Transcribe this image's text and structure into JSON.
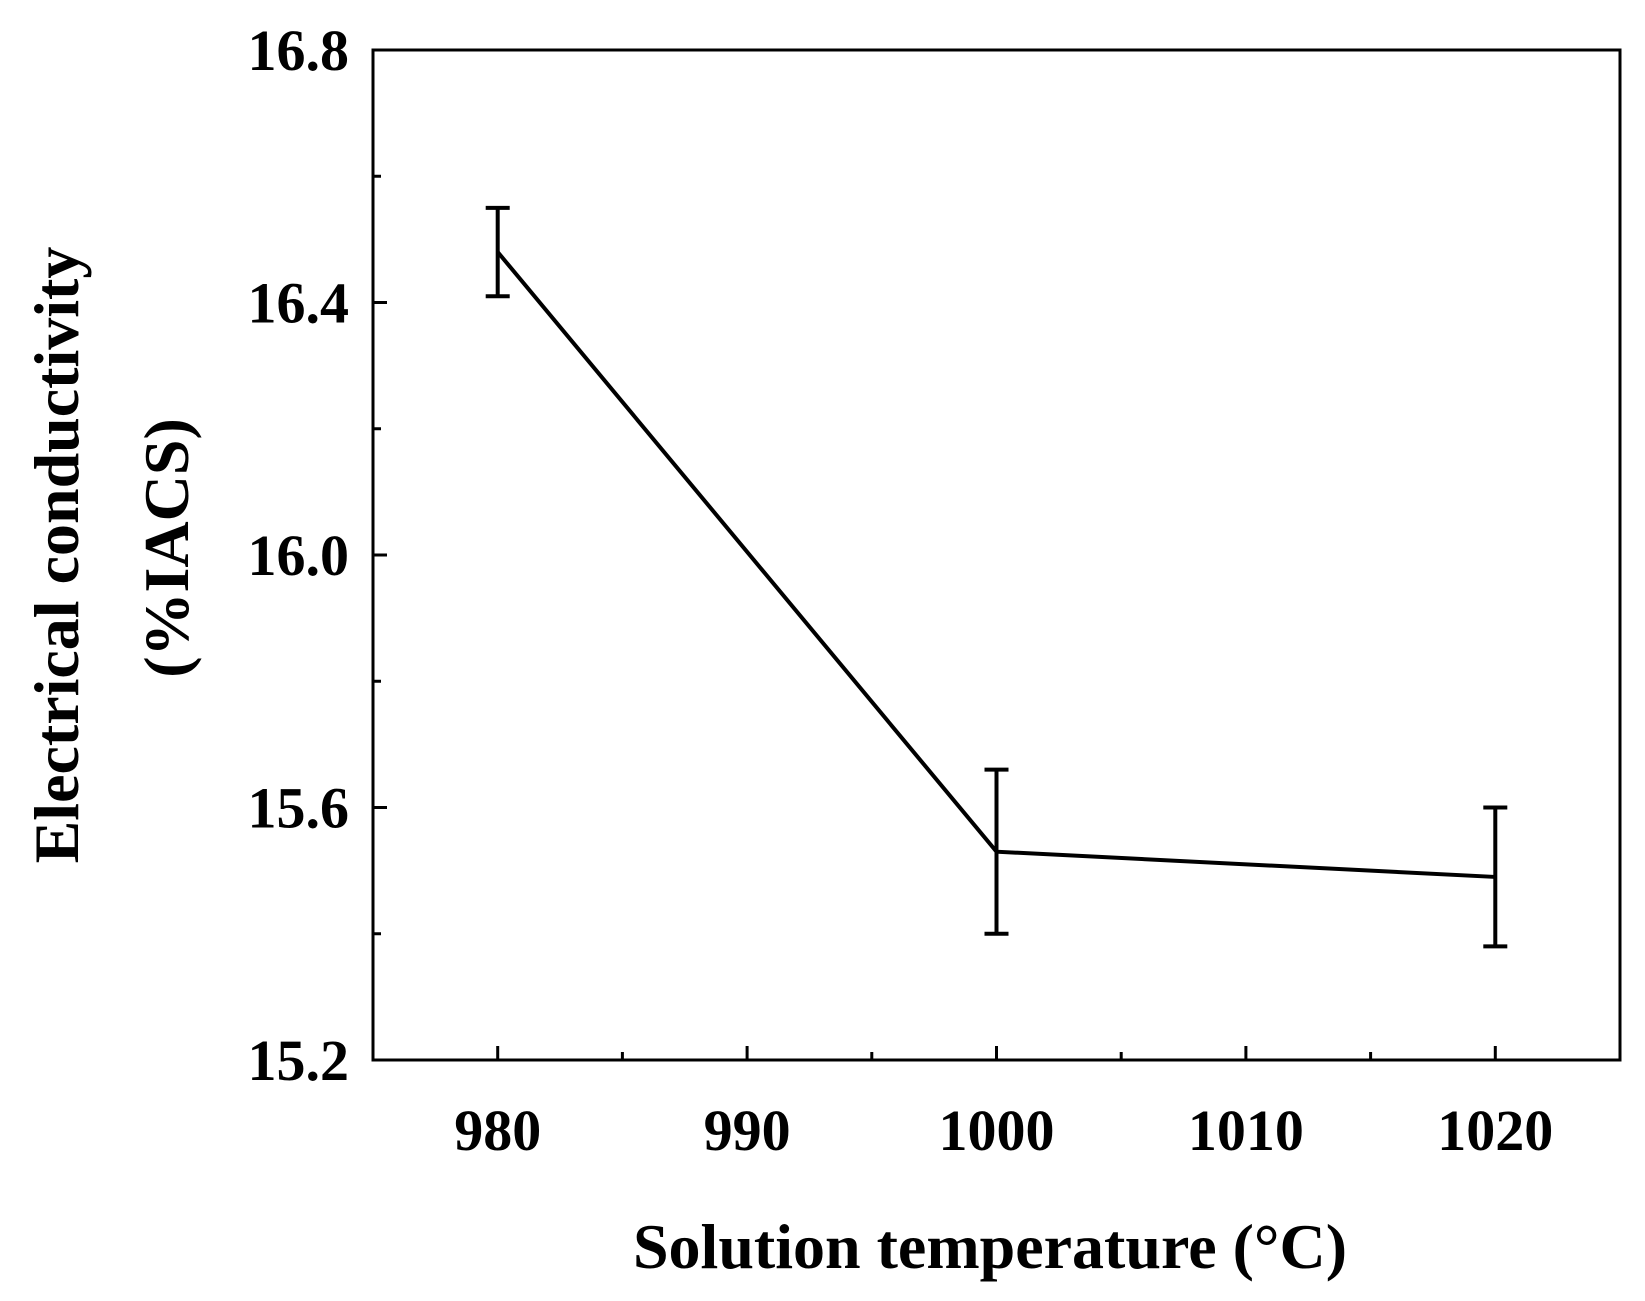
{
  "chart_data": {
    "type": "line",
    "title": "",
    "xlabel": "Solution temperature (°C)",
    "ylabel_line1": "Electrical conductivity",
    "ylabel_line2": "(%IACS)",
    "x": [
      980,
      1000,
      1020
    ],
    "series": [
      {
        "values": [
          16.48,
          15.53,
          15.49
        ],
        "errors": [
          0.07,
          0.13,
          0.11
        ]
      }
    ],
    "xlim": [
      975,
      1025
    ],
    "ylim": [
      15.2,
      16.8
    ],
    "xticks": [
      980,
      990,
      1000,
      1010,
      1020
    ],
    "xtick_labels": [
      "980",
      "990",
      "1000",
      "1010",
      "1020"
    ],
    "yticks": [
      15.2,
      15.6,
      16.0,
      16.4,
      16.8
    ],
    "ytick_labels": [
      "15.2",
      "15.6",
      "16.0",
      "16.4",
      "16.8"
    ],
    "grid": false,
    "legend": "none",
    "line_color": "#000000"
  }
}
